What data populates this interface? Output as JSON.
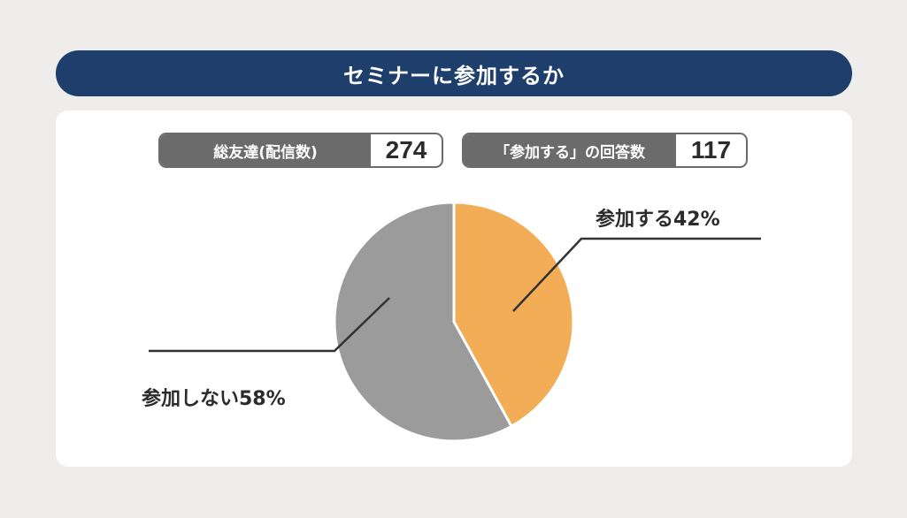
{
  "title": "セミナーに参加するか",
  "stats": {
    "total_label": "総友達(配信数)",
    "total_value": "274",
    "answer_label": "「参加する」の回答数",
    "answer_value": "117"
  },
  "chart_data": {
    "type": "pie",
    "slices": [
      {
        "label": "参加する42%",
        "value": 42,
        "color": "#f2ad56"
      },
      {
        "label": "参加しない58%",
        "value": 58,
        "color": "#9b9b9b"
      }
    ]
  }
}
